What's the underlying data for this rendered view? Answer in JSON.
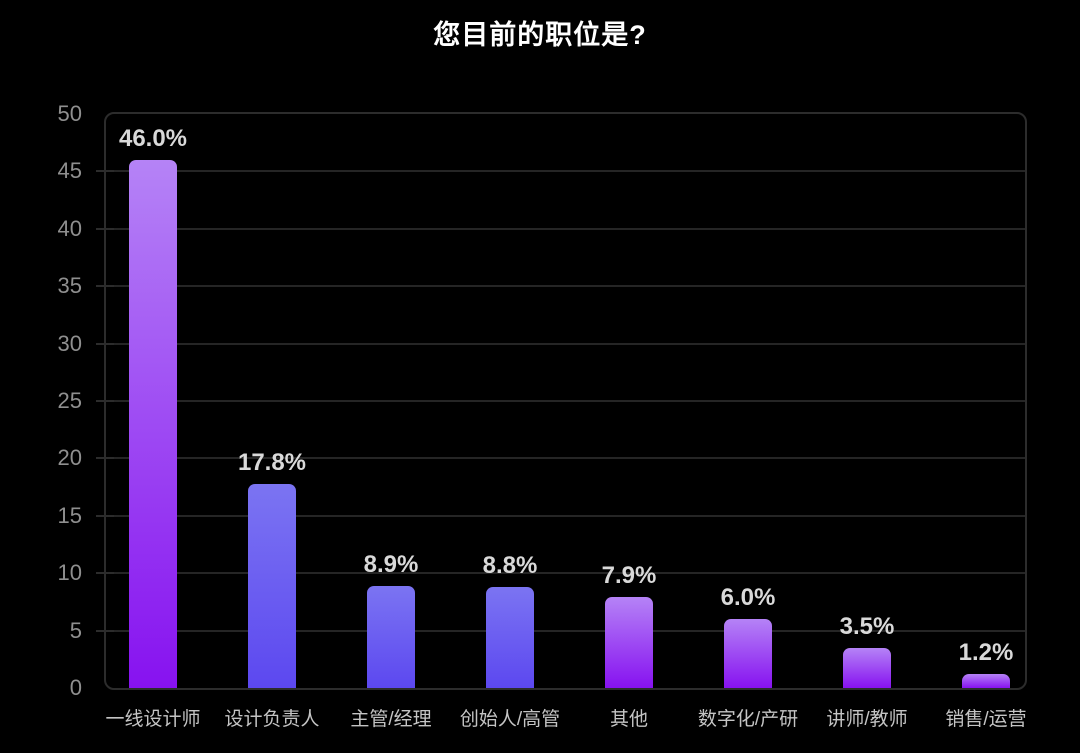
{
  "chart_data": {
    "type": "bar",
    "title": "您目前的职位是?",
    "categories": [
      "一线设计师",
      "设计负责人",
      "主管/经理",
      "创始人/高管",
      "其他",
      "数字化/产研",
      "讲师/教师",
      "销售/运营"
    ],
    "values": [
      46.0,
      17.8,
      8.9,
      8.8,
      7.9,
      6.0,
      3.5,
      1.2
    ],
    "value_labels": [
      "46.0%",
      "17.8%",
      "8.9%",
      "8.8%",
      "7.9%",
      "6.0%",
      "3.5%",
      "1.2%"
    ],
    "xlabel": "",
    "ylabel": "",
    "ylim": [
      0,
      50
    ],
    "yticks": [
      0,
      5,
      10,
      15,
      20,
      25,
      30,
      35,
      40,
      45,
      50
    ],
    "grid": "horizontal",
    "legend": "none",
    "bar_gradients": [
      {
        "top": "#b583f6",
        "bottom": "#8712f0"
      },
      {
        "top": "#7b74f2",
        "bottom": "#5c48f0"
      },
      {
        "top": "#7b74f2",
        "bottom": "#5c48f0"
      },
      {
        "top": "#7b74f2",
        "bottom": "#5c48f0"
      },
      {
        "top": "#b583f6",
        "bottom": "#8712f0"
      },
      {
        "top": "#b583f6",
        "bottom": "#8712f0"
      },
      {
        "top": "#b583f6",
        "bottom": "#8712f0"
      },
      {
        "top": "#b583f6",
        "bottom": "#8712f0"
      }
    ],
    "colors": {
      "background": "#000000",
      "title": "#ffffff",
      "grid": "#252525",
      "plot_border": "#2c2c2c",
      "y_tick_label": "#8f8f8f",
      "x_tick_label": "#c4c4c4",
      "value_label": "#d9d9d9"
    }
  }
}
